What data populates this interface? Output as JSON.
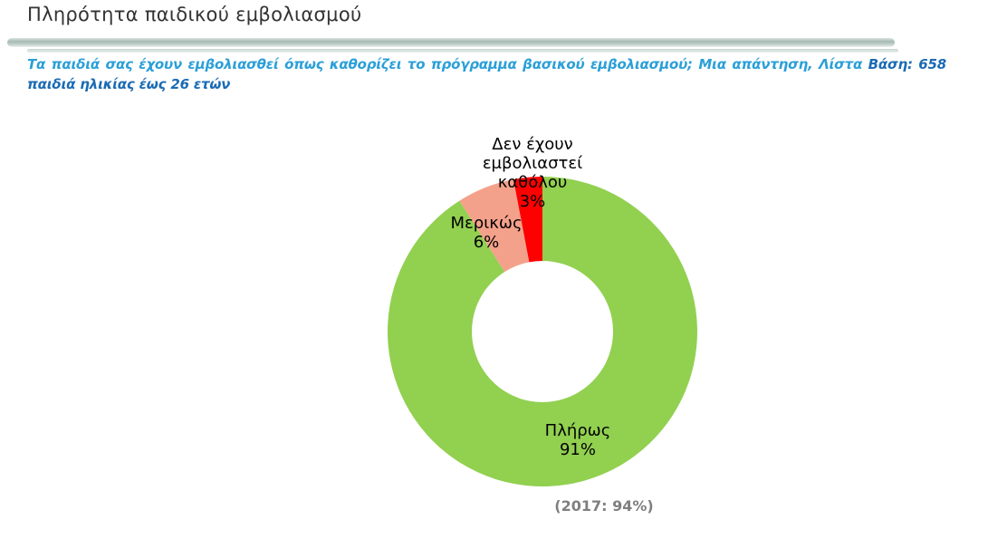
{
  "header": {
    "title": "Πληρότητα παιδικού εμβολιασμού"
  },
  "question": {
    "text_light": "Τα παιδιά σας έχουν εμβολιασθεί όπως καθορίζει το πρόγραμμα βασικού εμβολιασμού; Μια απάντηση, Λίστα",
    "text_dark": "Βάση: 658 παιδιά ηλικίας έως 26 ετών"
  },
  "chart_data": {
    "type": "pie",
    "subtype": "donut",
    "title": "Πληρότητα παιδικού εμβολιασμού",
    "categories": [
      "Πλήρως",
      "Μερικώς",
      "Δεν έχουν εμβολιαστεί καθόλου"
    ],
    "values": [
      91,
      6,
      3
    ],
    "unit": "%",
    "series_colors": [
      "#92D050",
      "#F4A18B",
      "#FF0000"
    ],
    "start_angle_deg": 0,
    "direction": "clockwise",
    "donut_hole_ratio": 0.456,
    "legend_position": "none",
    "data_labels": [
      {
        "category": "Πλήρως",
        "value_text": "91%"
      },
      {
        "category": "Μερικώς",
        "value_text": "6%"
      },
      {
        "category": "Δεν έχουν εμβολιαστεί καθόλου",
        "value_text": "3%"
      }
    ],
    "annotation": "(2017: 94%)"
  },
  "style": {
    "accent_light_blue": "#2B9FD8",
    "accent_dark_blue": "#1B6BB5",
    "title_color": "#333333",
    "annotation_color": "#7F7F7F",
    "label_color": "#000000"
  }
}
